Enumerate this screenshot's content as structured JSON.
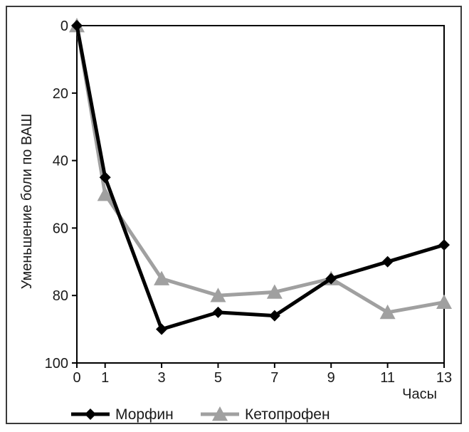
{
  "chart_data": {
    "type": "line",
    "title": "",
    "xlabel": "Часы",
    "ylabel": "Уменьшение боли по ВАШ",
    "x": [
      0,
      1,
      3,
      5,
      7,
      9,
      11,
      13
    ],
    "x_ticks": [
      "0",
      "1",
      "3",
      "5",
      "7",
      "9",
      "11",
      "13"
    ],
    "y_ticks": [
      "0",
      "20",
      "40",
      "60",
      "80",
      "100"
    ],
    "ylim": [
      0,
      100
    ],
    "y_inverted": true,
    "grid": false,
    "legend_position": "bottom",
    "series": [
      {
        "name": "Морфин",
        "values": [
          0,
          45,
          90,
          85,
          86,
          75,
          70,
          65
        ],
        "color": "#000000",
        "marker": "diamond"
      },
      {
        "name": "Кетопрофен",
        "values": [
          0,
          50,
          75,
          80,
          79,
          75,
          85,
          82
        ],
        "color": "#a0a0a0",
        "marker": "triangle"
      }
    ]
  }
}
